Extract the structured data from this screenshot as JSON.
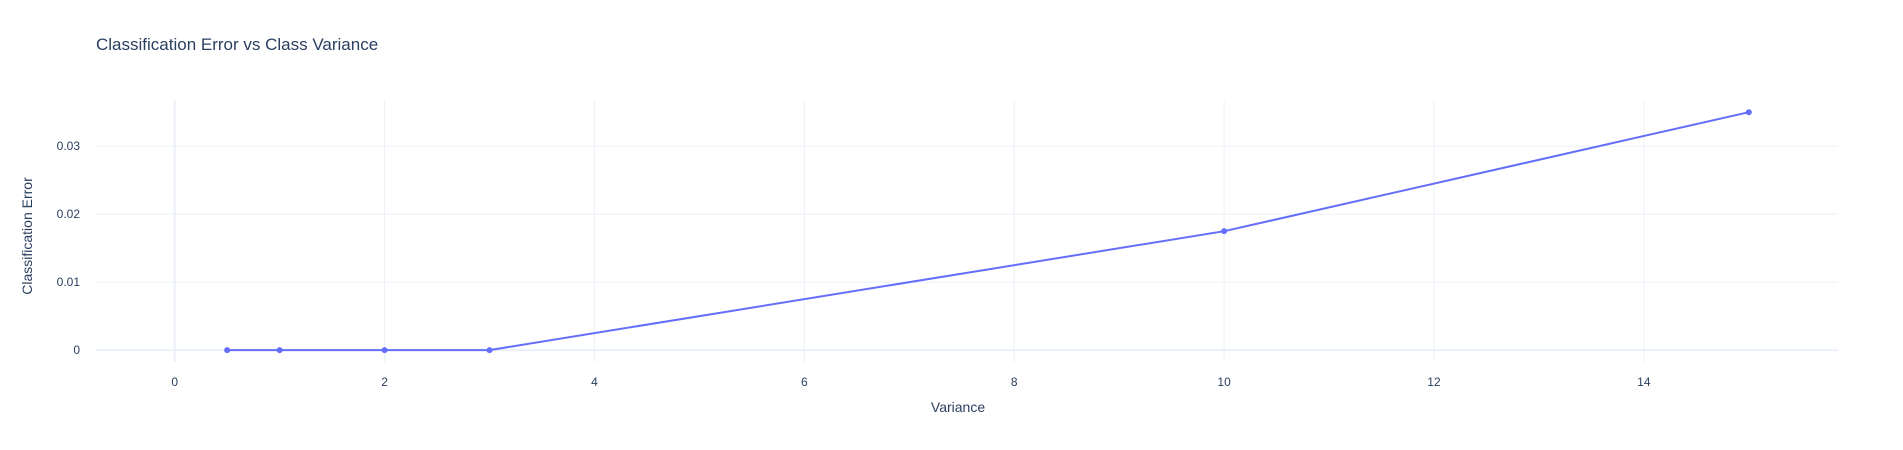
{
  "chart_data": {
    "type": "line",
    "title": "Classification Error vs Class Variance",
    "xlabel": "Variance",
    "ylabel": "Classification Error",
    "xlim": [
      -0.75,
      15.85
    ],
    "ylim": [
      -0.00175,
      0.0368
    ],
    "x_ticks": [
      0,
      2,
      4,
      6,
      8,
      10,
      12,
      14
    ],
    "x_tick_labels": [
      "0",
      "2",
      "4",
      "6",
      "8",
      "10",
      "12",
      "14"
    ],
    "y_ticks": [
      0,
      0.01,
      0.02,
      0.03
    ],
    "y_tick_labels": [
      "0",
      "0.01",
      "0.02",
      "0.03"
    ],
    "grid": true,
    "series": [
      {
        "x": [
          0.5,
          1,
          2,
          3,
          10,
          15
        ],
        "y": [
          0,
          0,
          0,
          0,
          0.0175,
          0.035
        ],
        "color": "#636efa"
      }
    ]
  }
}
